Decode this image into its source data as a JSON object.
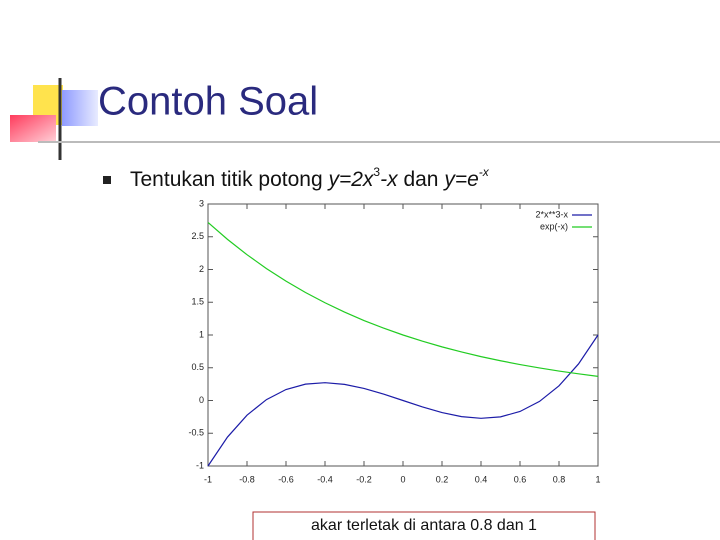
{
  "title": "Contoh Soal",
  "bullet": [
    "Tentukan titik potong ",
    "y=2x",
    "3",
    "-x",
    " dan ",
    "y=e",
    "-x"
  ],
  "note": "akar terletak di antara 0.8 dan 1",
  "chart_data": {
    "type": "line",
    "x": [
      -1,
      -0.9,
      -0.8,
      -0.7,
      -0.6,
      -0.5,
      -0.4,
      -0.3,
      -0.2,
      -0.1,
      0,
      0.1,
      0.2,
      0.3,
      0.4,
      0.5,
      0.6,
      0.7,
      0.8,
      0.9,
      1
    ],
    "series": [
      {
        "name": "2*x**3-x",
        "color": "#1c1ca8",
        "values": [
          -1,
          -0.558,
          -0.224,
          0.014,
          0.168,
          0.25,
          0.272,
          0.246,
          0.184,
          0.098,
          0,
          -0.098,
          -0.184,
          -0.246,
          -0.272,
          -0.25,
          -0.168,
          -0.014,
          0.224,
          0.558,
          1
        ]
      },
      {
        "name": "exp(-x)",
        "color": "#22cc22",
        "values": [
          2.718,
          2.46,
          2.226,
          2.014,
          1.822,
          1.649,
          1.492,
          1.35,
          1.221,
          1.105,
          1,
          0.905,
          0.819,
          0.741,
          0.67,
          0.607,
          0.549,
          0.497,
          0.449,
          0.407,
          0.368
        ]
      }
    ],
    "xlim": [
      -1,
      1
    ],
    "xticks": [
      -1,
      -0.8,
      -0.6,
      -0.4,
      -0.2,
      0,
      0.2,
      0.4,
      0.6,
      0.8,
      1
    ],
    "ylim": [
      -1,
      3
    ],
    "yticks": [
      -1,
      -0.5,
      0,
      0.5,
      1,
      1.5,
      2,
      2.5,
      3
    ],
    "grid": false,
    "legend": "top-right"
  }
}
